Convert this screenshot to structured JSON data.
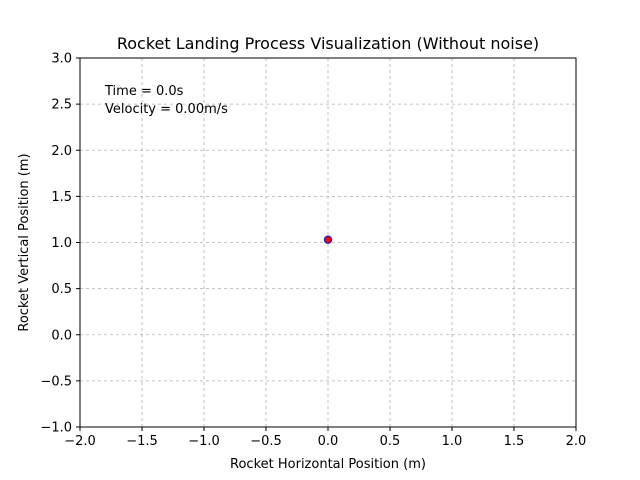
{
  "chart_data": {
    "type": "scatter",
    "title": "Rocket Landing Process Visualization (Without noise)",
    "xlabel": "Rocket Horizontal Position (m)",
    "ylabel": "Rocket Vertical Position (m)",
    "xlim": [
      -2.0,
      2.0
    ],
    "ylim": [
      -1.0,
      3.0
    ],
    "xticks": [
      -2.0,
      -1.5,
      -1.0,
      -0.5,
      0.0,
      0.5,
      1.0,
      1.5,
      2.0
    ],
    "yticks": [
      -1.0,
      -0.5,
      0.0,
      0.5,
      1.0,
      1.5,
      2.0,
      2.5,
      3.0
    ],
    "xtick_labels": [
      "−2.0",
      "−1.5",
      "−1.0",
      "−0.5",
      "0.0",
      "0.5",
      "1.0",
      "1.5",
      "2.0"
    ],
    "ytick_labels": [
      "−1.0",
      "−0.5",
      "0.0",
      "0.5",
      "1.0",
      "1.5",
      "2.0",
      "2.5",
      "3.0"
    ],
    "grid": true,
    "grid_style": "dashed",
    "points": [
      {
        "x": 0.0,
        "y": 1.03
      }
    ],
    "marker_fill": "#ff0000",
    "marker_edge": "#1f1fbf",
    "annotations": {
      "time": "Time = 0.0s",
      "velocity": "Velocity = 0.00m/s"
    }
  }
}
